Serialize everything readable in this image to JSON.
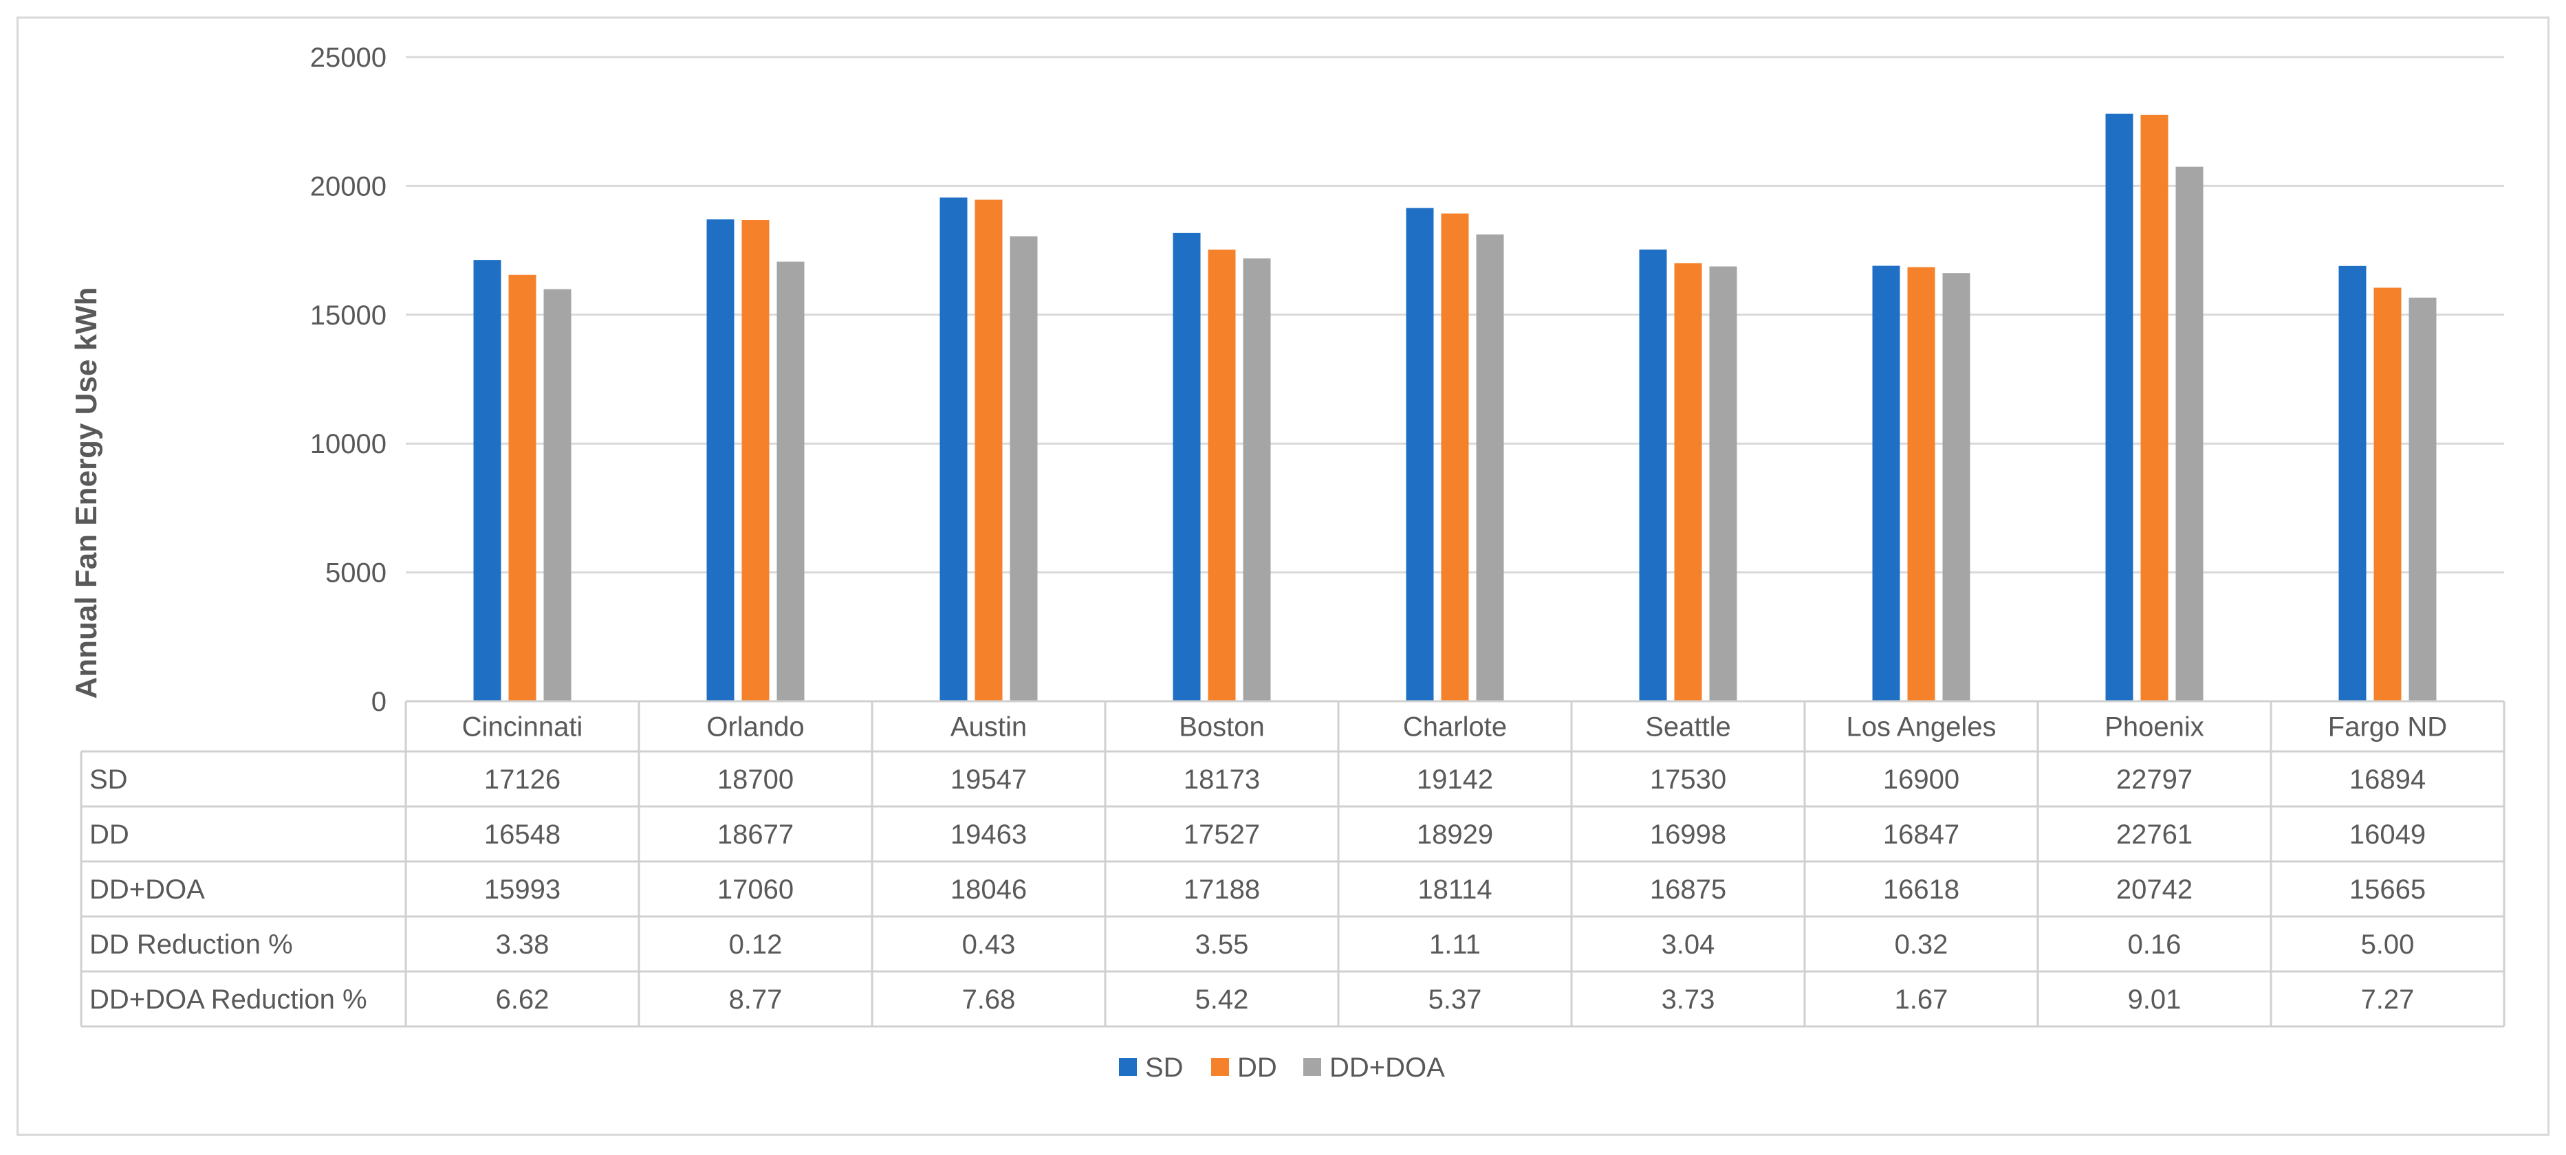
{
  "chart_data": {
    "type": "bar",
    "title": "",
    "ylabel": "Annual Fan Energy Use kWh",
    "xlabel": "",
    "ylim": [
      0,
      25000
    ],
    "yticks": [
      0,
      5000,
      10000,
      15000,
      20000,
      25000
    ],
    "grid": true,
    "legend_position": "bottom",
    "categories": [
      "Cincinnati",
      "Orlando",
      "Austin",
      "Boston",
      "Charlote",
      "Seattle",
      "Los Angeles",
      "Phoenix",
      "Fargo ND"
    ],
    "series": [
      {
        "name": "SD",
        "color": "#1f6fc5",
        "values": [
          17126,
          18700,
          19547,
          18173,
          19142,
          17530,
          16900,
          22797,
          16894
        ]
      },
      {
        "name": "DD",
        "color": "#f5822a",
        "values": [
          16548,
          18677,
          19463,
          17527,
          18929,
          16998,
          16847,
          22761,
          16049
        ]
      },
      {
        "name": "DD+DOA",
        "color": "#a5a5a5",
        "values": [
          15993,
          17060,
          18046,
          17188,
          18114,
          16875,
          16618,
          20742,
          15665
        ]
      }
    ],
    "table_rows": [
      {
        "label": "SD",
        "values": [
          "17126",
          "18700",
          "19547",
          "18173",
          "19142",
          "17530",
          "16900",
          "22797",
          "16894"
        ]
      },
      {
        "label": "DD",
        "values": [
          "16548",
          "18677",
          "19463",
          "17527",
          "18929",
          "16998",
          "16847",
          "22761",
          "16049"
        ]
      },
      {
        "label": "DD+DOA",
        "values": [
          "15993",
          "17060",
          "18046",
          "17188",
          "18114",
          "16875",
          "16618",
          "20742",
          "15665"
        ]
      },
      {
        "label": "DD Reduction %",
        "values": [
          "3.38",
          "0.12",
          "0.43",
          "3.55",
          "1.11",
          "3.04",
          "0.32",
          "0.16",
          "5.00"
        ]
      },
      {
        "label": "DD+DOA Reduction %",
        "values": [
          "6.62",
          "8.77",
          "7.68",
          "5.42",
          "5.37",
          "3.73",
          "1.67",
          "9.01",
          "7.27"
        ]
      }
    ]
  }
}
